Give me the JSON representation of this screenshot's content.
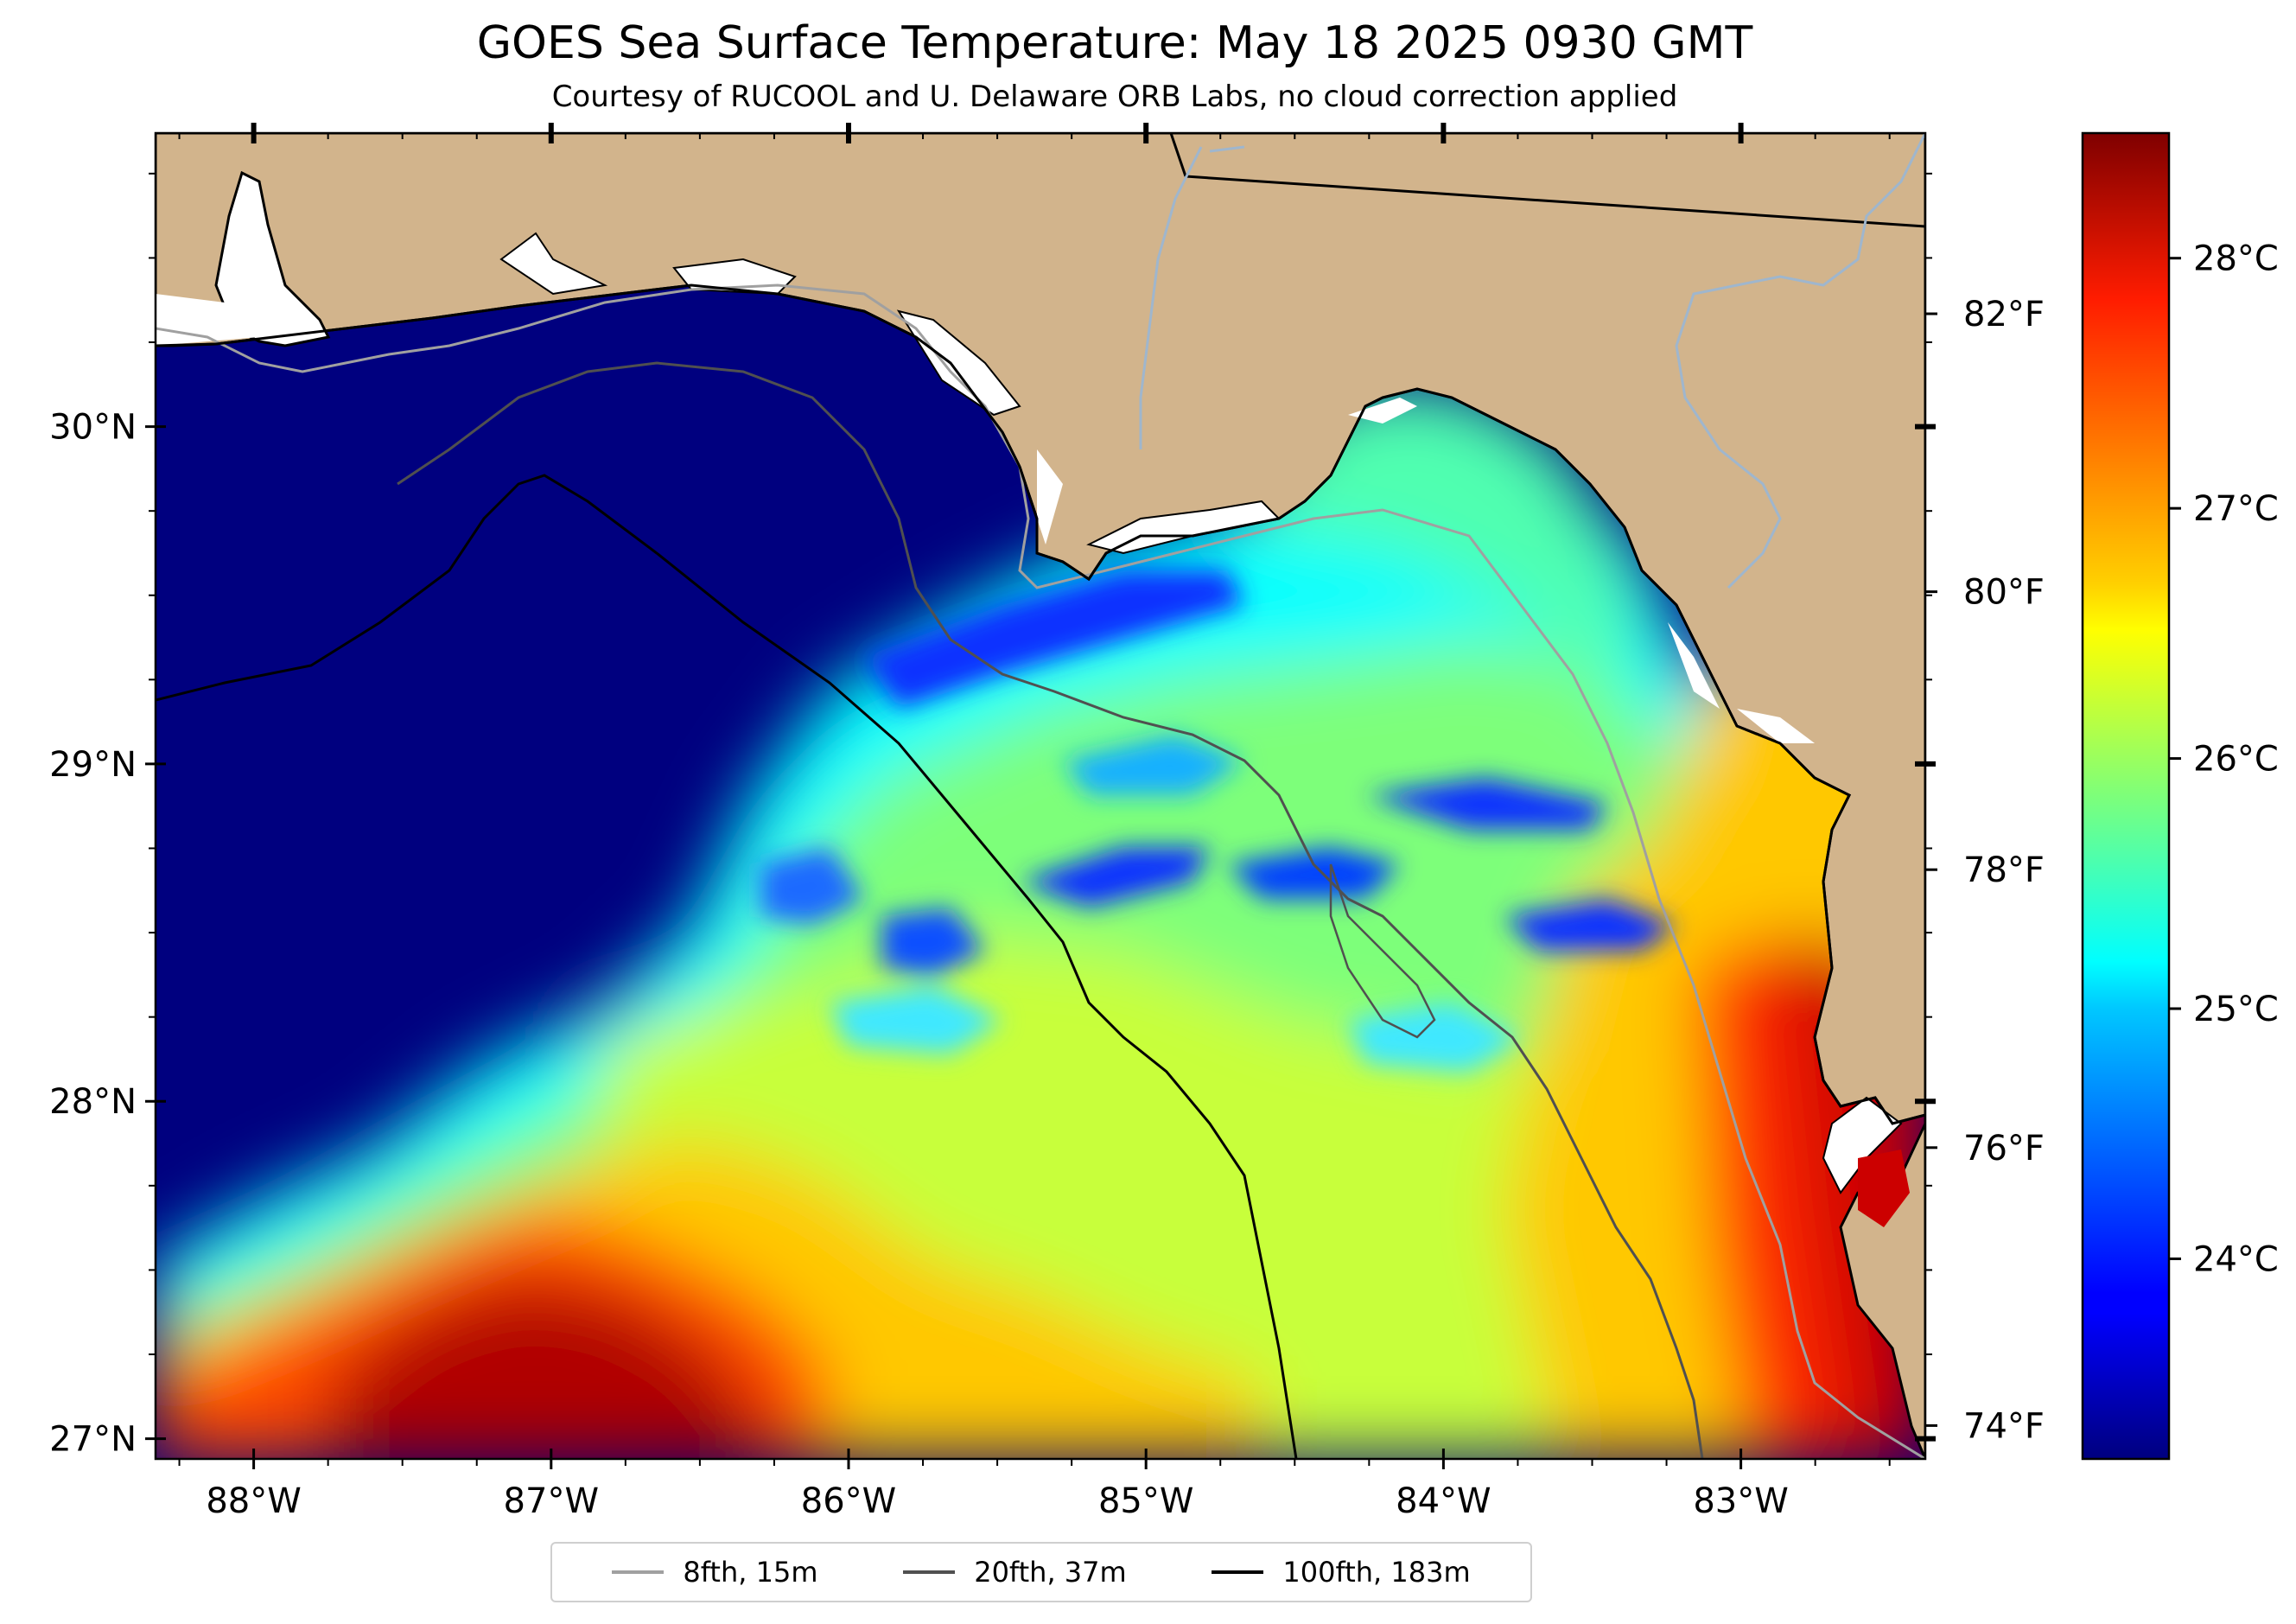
{
  "title": "GOES Sea Surface Temperature: May 18 2025 0930 GMT",
  "subtitle": "Courtesy of RUCOOL and U. Delaware ORB Labs, no cloud correction applied",
  "colors": {
    "land": "#d2b48c",
    "cloud_mask": "#ffffff",
    "coastline": "#000000",
    "rivers": "#9fb6cd",
    "contour_8fth": "#a0a0a0",
    "contour_20fth": "#505050",
    "contour_100fth": "#000000"
  },
  "map": {
    "lon_range": [
      -88.33,
      -82.38
    ],
    "lat_range": [
      26.94,
      30.87
    ],
    "lon_ticks": [
      "88°W",
      "87°W",
      "86°W",
      "85°W",
      "84°W",
      "83°W"
    ],
    "lat_ticks": [
      "27°N",
      "28°N",
      "29°N",
      "30°N"
    ]
  },
  "colorbar": {
    "colormap": "jet",
    "range_c": [
      23.2,
      28.5
    ],
    "celsius_ticks": [
      "24°C",
      "25°C",
      "26°C",
      "27°C",
      "28°C"
    ],
    "fahrenheit_ticks": [
      "74°F",
      "76°F",
      "78°F",
      "80°F",
      "82°F"
    ]
  },
  "legend": [
    {
      "label": "8fth, 15m",
      "color": "#a0a0a0"
    },
    {
      "label": "20fth, 37m",
      "color": "#505050"
    },
    {
      "label": "100fth, 183m",
      "color": "#000000"
    }
  ]
}
